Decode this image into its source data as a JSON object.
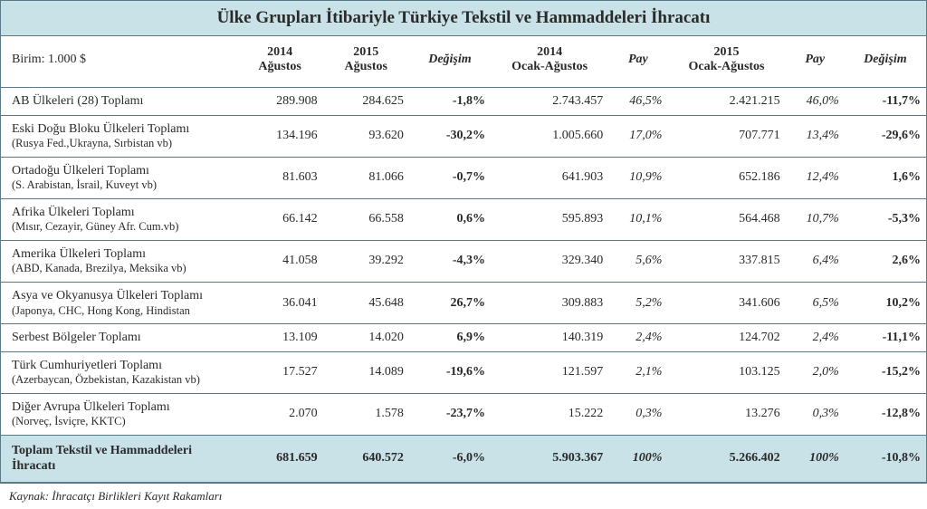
{
  "title": "Ülke Grupları İtibariyle Türkiye Tekstil ve Hammaddeleri İhracatı",
  "unit_label": "Birim: 1.000 $",
  "columns": {
    "c1_line1": "2014",
    "c1_line2": "Ağustos",
    "c2_line1": "2015",
    "c2_line2": "Ağustos",
    "c3": "Değişim",
    "c4_line1": "2014",
    "c4_line2": "Ocak-Ağustos",
    "c5": "Pay",
    "c6_line1": "2015",
    "c6_line2": "Ocak-Ağustos",
    "c7": "Pay",
    "c8": "Değişim"
  },
  "rows": [
    {
      "name_main": "AB Ülkeleri (28) Toplamı",
      "name_sub": "",
      "v1": "289.908",
      "v2": "284.625",
      "chg1": "-1,8%",
      "ytd1": "2.743.457",
      "pay1": "46,5%",
      "ytd2": "2.421.215",
      "pay2": "46,0%",
      "chg2": "-11,7%"
    },
    {
      "name_main": "Eski Doğu Bloku Ülkeleri Toplamı",
      "name_sub": "(Rusya Fed.,Ukrayna, Sırbistan vb)",
      "v1": "134.196",
      "v2": "93.620",
      "chg1": "-30,2%",
      "ytd1": "1.005.660",
      "pay1": "17,0%",
      "ytd2": "707.771",
      "pay2": "13,4%",
      "chg2": "-29,6%"
    },
    {
      "name_main": "Ortadoğu Ülkeleri Toplamı",
      "name_sub": "(S. Arabistan, İsrail, Kuveyt vb)",
      "v1": "81.603",
      "v2": "81.066",
      "chg1": "-0,7%",
      "ytd1": "641.903",
      "pay1": "10,9%",
      "ytd2": "652.186",
      "pay2": "12,4%",
      "chg2": "1,6%"
    },
    {
      "name_main": "Afrika Ülkeleri Toplamı",
      "name_sub": "(Mısır, Cezayir, Güney Afr. Cum.vb)",
      "v1": "66.142",
      "v2": "66.558",
      "chg1": "0,6%",
      "ytd1": "595.893",
      "pay1": "10,1%",
      "ytd2": "564.468",
      "pay2": "10,7%",
      "chg2": "-5,3%"
    },
    {
      "name_main": "Amerika Ülkeleri Toplamı",
      "name_sub": "(ABD, Kanada, Brezilya, Meksika vb)",
      "v1": "41.058",
      "v2": "39.292",
      "chg1": "-4,3%",
      "ytd1": "329.340",
      "pay1": "5,6%",
      "ytd2": "337.815",
      "pay2": "6,4%",
      "chg2": "2,6%"
    },
    {
      "name_main": "Asya ve Okyanusya Ülkeleri Toplamı",
      "name_sub": "(Japonya, CHC, Hong Kong, Hindistan",
      "v1": "36.041",
      "v2": "45.648",
      "chg1": "26,7%",
      "ytd1": "309.883",
      "pay1": "5,2%",
      "ytd2": "341.606",
      "pay2": "6,5%",
      "chg2": "10,2%"
    },
    {
      "name_main": "Serbest Bölgeler Toplamı",
      "name_sub": "",
      "v1": "13.109",
      "v2": "14.020",
      "chg1": "6,9%",
      "ytd1": "140.319",
      "pay1": "2,4%",
      "ytd2": "124.702",
      "pay2": "2,4%",
      "chg2": "-11,1%"
    },
    {
      "name_main": "Türk Cumhuriyetleri Toplamı",
      "name_sub": "(Azerbaycan, Özbekistan, Kazakistan vb)",
      "v1": "17.527",
      "v2": "14.089",
      "chg1": "-19,6%",
      "ytd1": "121.597",
      "pay1": "2,1%",
      "ytd2": "103.125",
      "pay2": "2,0%",
      "chg2": "-15,2%"
    },
    {
      "name_main": "Diğer Avrupa Ülkeleri Toplamı",
      "name_sub": "(Norveç, İsviçre, KKTC)",
      "v1": "2.070",
      "v2": "1.578",
      "chg1": "-23,7%",
      "ytd1": "15.222",
      "pay1": "0,3%",
      "ytd2": "13.276",
      "pay2": "0,3%",
      "chg2": "-12,8%"
    }
  ],
  "total": {
    "name_main": "Toplam Tekstil ve Hammaddeleri İhracatı",
    "v1": "681.659",
    "v2": "640.572",
    "chg1": "-6,0%",
    "ytd1": "5.903.367",
    "pay1": "100%",
    "ytd2": "5.266.402",
    "pay2": "100%",
    "chg2": "-10,8%"
  },
  "source": "Kaynak: İhracatçı Birlikleri Kayıt Rakamları"
}
